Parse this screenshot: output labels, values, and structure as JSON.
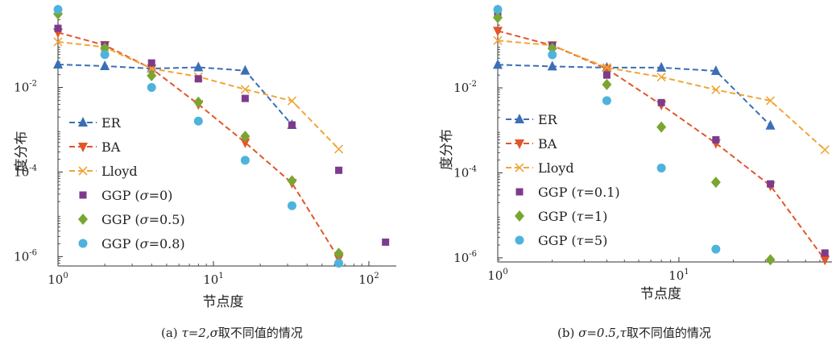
{
  "colors": {
    "ER": "#3b6fb5",
    "BA": "#e2562b",
    "Lloyd": "#f0a637",
    "GGP1": "#7d3b8e",
    "GGP2": "#79a631",
    "GGP3": "#4eb3dc"
  },
  "chart_data": [
    {
      "type": "scatter",
      "panel": "a",
      "caption": {
        "label": "(a)",
        "tau_part": "τ=2,",
        "sigma_part": "σ",
        "rest": "取不同值的情况"
      },
      "xlabel": "节点度",
      "ylabel": "度分布",
      "xscale": "log",
      "yscale": "log",
      "xlim": [
        1,
        150
      ],
      "ylim": [
        6e-07,
        0.9
      ],
      "xticks": [
        {
          "value": 1,
          "label_base": "10",
          "label_exp": "0"
        },
        {
          "value": 10,
          "label_base": "10",
          "label_exp": "1"
        },
        {
          "value": 100,
          "label_base": "10",
          "label_exp": "2"
        }
      ],
      "yticks": [
        {
          "value": 1e-06,
          "label_base": "10",
          "label_exp": "-6"
        },
        {
          "value": 0.0001,
          "label_base": "10",
          "label_exp": "-4"
        },
        {
          "value": 0.01,
          "label_base": "10",
          "label_exp": "-2"
        }
      ],
      "grid": false,
      "legend_position": "center-left",
      "series": [
        {
          "name": "ER",
          "marker": "triangle-up",
          "line": "dashed",
          "color_key": "ER",
          "x": [
            1,
            2,
            4,
            8,
            16,
            32
          ],
          "y": [
            0.035,
            0.032,
            0.028,
            0.03,
            0.025,
            0.0013
          ]
        },
        {
          "name": "BA",
          "marker": "triangle-down",
          "line": "dashed",
          "color_key": "BA",
          "x": [
            1,
            2,
            4,
            8,
            16,
            32,
            64
          ],
          "y": [
            0.2,
            0.1,
            0.028,
            0.004,
            0.0005,
            5.5e-05,
            9e-07
          ]
        },
        {
          "name": "Lloyd",
          "marker": "x",
          "line": "dashed",
          "color_key": "Lloyd",
          "x": [
            1,
            2,
            4,
            8,
            16,
            32,
            64
          ],
          "y": [
            0.12,
            0.09,
            0.028,
            0.018,
            0.009,
            0.0048,
            0.00035
          ]
        },
        {
          "name": "GGP (σ=0)",
          "name_prefix": "GGP (",
          "name_var": "σ",
          "name_suffix": "=0)",
          "marker": "square",
          "line": "none",
          "color_key": "GGP1",
          "x": [
            1,
            2,
            4,
            8,
            16,
            32,
            64,
            128
          ],
          "y": [
            0.25,
            0.1,
            0.038,
            0.016,
            0.0055,
            0.0013,
            0.00011,
            2.2e-06
          ]
        },
        {
          "name": "GGP (σ=0.5)",
          "name_prefix": "GGP (",
          "name_var": "σ",
          "name_suffix": "=0.5)",
          "marker": "diamond",
          "line": "none",
          "color_key": "GGP2",
          "x": [
            1,
            2,
            4,
            8,
            16,
            32,
            64
          ],
          "y": [
            0.55,
            0.085,
            0.019,
            0.0045,
            0.0007,
            6.2e-05,
            1.2e-06
          ]
        },
        {
          "name": "GGP (σ=0.8)",
          "name_prefix": "GGP (",
          "name_var": "σ",
          "name_suffix": "=0.8)",
          "marker": "circle",
          "line": "none",
          "color_key": "GGP3",
          "x": [
            1,
            2,
            4,
            8,
            16,
            32,
            64
          ],
          "y": [
            0.7,
            0.06,
            0.01,
            0.0016,
            0.00019,
            1.6e-05,
            7e-07
          ]
        }
      ]
    },
    {
      "type": "scatter",
      "panel": "b",
      "caption": {
        "label": "(b)",
        "sigma_part": "σ=0.5,",
        "tau_part": "τ",
        "rest": "取不同值的情况"
      },
      "xlabel": "节点度",
      "ylabel": "度分布",
      "xscale": "log",
      "yscale": "log",
      "xlim": [
        1,
        70
      ],
      "ylim": [
        8e-07,
        0.9
      ],
      "xticks": [
        {
          "value": 1,
          "label_base": "10",
          "label_exp": "0"
        },
        {
          "value": 10,
          "label_base": "10",
          "label_exp": "1"
        }
      ],
      "yticks": [
        {
          "value": 1e-06,
          "label_base": "10",
          "label_exp": "-6"
        },
        {
          "value": 0.0001,
          "label_base": "10",
          "label_exp": "-4"
        },
        {
          "value": 0.01,
          "label_base": "10",
          "label_exp": "-2"
        }
      ],
      "grid": false,
      "legend_position": "center-left",
      "series": [
        {
          "name": "ER",
          "marker": "triangle-up",
          "line": "dashed",
          "color_key": "ER",
          "x": [
            1,
            2,
            4,
            8,
            16,
            32
          ],
          "y": [
            0.035,
            0.032,
            0.03,
            0.03,
            0.025,
            0.0013
          ]
        },
        {
          "name": "BA",
          "marker": "triangle-down",
          "line": "dashed",
          "color_key": "BA",
          "x": [
            1,
            2,
            4,
            8,
            16,
            32,
            64
          ],
          "y": [
            0.22,
            0.1,
            0.028,
            0.004,
            0.0005,
            5e-05,
            9e-07
          ]
        },
        {
          "name": "Lloyd",
          "marker": "x",
          "line": "dashed",
          "color_key": "Lloyd",
          "x": [
            1,
            2,
            4,
            8,
            16,
            32,
            64
          ],
          "y": [
            0.13,
            0.1,
            0.03,
            0.018,
            0.009,
            0.005,
            0.00035
          ]
        },
        {
          "name": "GGP (τ=0.1)",
          "name_prefix": "GGP (",
          "name_var": "τ",
          "name_suffix": "=0.1)",
          "marker": "square",
          "line": "none",
          "color_key": "GGP1",
          "x": [
            1,
            2,
            4,
            8,
            16,
            32,
            64
          ],
          "y": [
            0.55,
            0.1,
            0.02,
            0.0045,
            0.0006,
            5.5e-05,
            1.3e-06
          ]
        },
        {
          "name": "GGP (τ=1)",
          "name_prefix": "GGP (",
          "name_var": "τ",
          "name_suffix": "=1)",
          "marker": "diamond",
          "line": "none",
          "color_key": "GGP2",
          "x": [
            1,
            2,
            4,
            8,
            16,
            32
          ],
          "y": [
            0.45,
            0.085,
            0.012,
            0.0012,
            6e-05,
            9e-07
          ]
        },
        {
          "name": "GGP (τ=5)",
          "name_prefix": "GGP (",
          "name_var": "τ",
          "name_suffix": "=5)",
          "marker": "circle",
          "line": "none",
          "color_key": "GGP3",
          "x": [
            1,
            2,
            4,
            8,
            16
          ],
          "y": [
            0.7,
            0.06,
            0.005,
            0.00013,
            1.6e-06
          ]
        }
      ]
    }
  ]
}
